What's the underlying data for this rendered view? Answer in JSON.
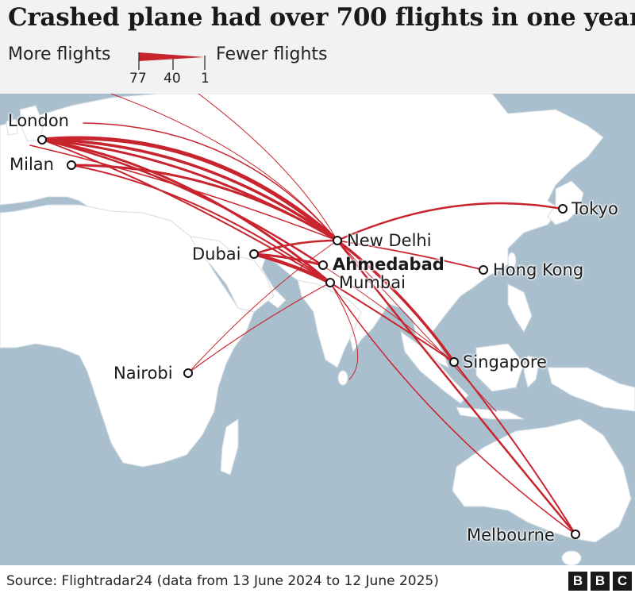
{
  "title": "Crashed plane had over 700 flights in one year",
  "legend": {
    "more_label": "More flights",
    "fewer_label": "Fewer flights",
    "ticks": [
      "77",
      "40",
      "1"
    ]
  },
  "colors": {
    "route": "#c8242e",
    "land": "#ffffff",
    "sea": "#a9bfcd",
    "header_bg": "#f2f2f2"
  },
  "cities": {
    "london": "London",
    "milan": "Milan",
    "tokyo": "Tokyo",
    "new_delhi": "New Delhi",
    "dubai": "Dubai",
    "ahmedabad": "Ahmedabad",
    "mumbai": "Mumbai",
    "hong_kong": "Hong Kong",
    "singapore": "Singapore",
    "nairobi": "Nairobi",
    "melbourne": "Melbourne"
  },
  "footer": {
    "source": "Source: Flightradar24 (data from 13 June 2024 to 12 June 2025)",
    "logo": [
      "B",
      "B",
      "C"
    ]
  }
}
